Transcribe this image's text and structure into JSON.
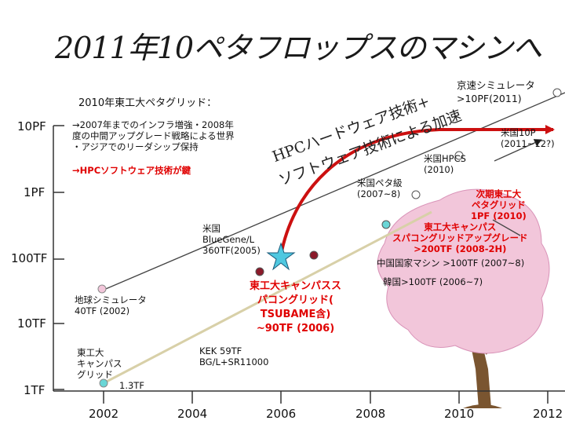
{
  "title": "2011年10ペタフロップスのマシンへ",
  "y_axis": [
    "10PF",
    "1PF",
    "100TF",
    "10TF",
    "1TF"
  ],
  "x_axis": [
    "2002",
    "2004",
    "2006",
    "2008",
    "2010",
    "2012"
  ],
  "colors": {
    "red": "#e00000",
    "arrow": "#cc1010",
    "blossom": "#f2c6da",
    "line": "#d8d0a8"
  },
  "summary_box": {
    "heading": "2010年東工大ペタグリッド：",
    "body": "→2007年までのインフラ増強・2008年\n度の中間アップグレード戦略による世界\n・アジアでのリーダシップ保持",
    "highlight": "→HPCソフトウェア技術が鍵"
  },
  "diagonal_text": {
    "line1": "HPCハードウェア技術+",
    "line2": "ソフトウェア技術による加速"
  },
  "labels": {
    "fast_sim": "京速シミュレータ\n>10PF(2011)",
    "us10p": "米国10P\n(2011~12?)",
    "us_hpcs": "米国HPCS\n(2010)",
    "us_peta": "米国ペタ級\n(2007~8)",
    "bluegene": "米国\nBlueGene/L\n360TF(2005)",
    "earth_sim": "地球シミュレータ\n40TF (2002)",
    "tokyo_campus": "東工大\nキャンパス\nグリッド",
    "tf13": "1.3TF",
    "kek": "KEK 59TF\nBG/L+SR11000",
    "next_titech": "次期東工大\nペタグリッド\n1PF (2010)",
    "campus_upgrade": "東工大キャンパス\nスパコングリッドアップグレード\n>200TF (2008-2H)",
    "china": "中国国家マシン >100TF (2007~8)",
    "korea": "韓国>100TF (2006~7)",
    "tsubame": "東工大キャンパスス\nパコングリッド(\nTSUBAME含)\n~90TF (2006)"
  }
}
